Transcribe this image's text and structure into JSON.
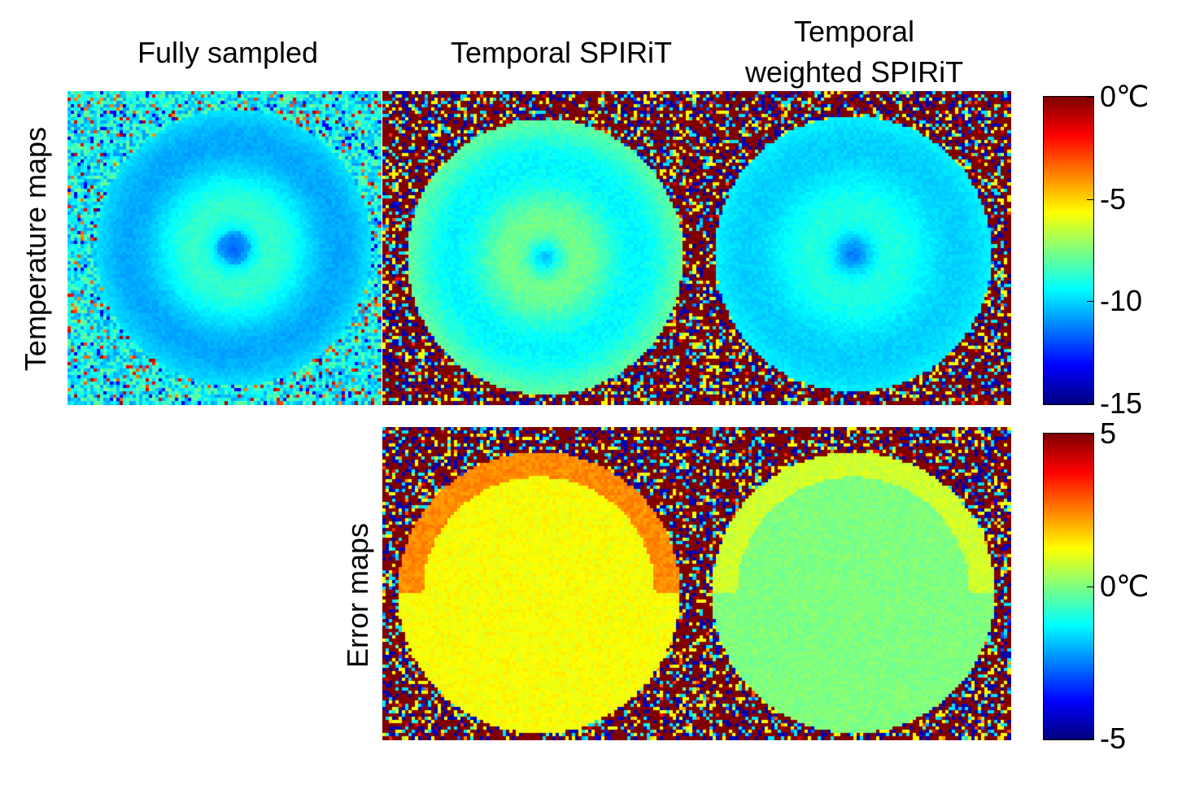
{
  "columns": {
    "fully_sampled": "Fully sampled",
    "temporal_spirit": "Temporal SPIRiT",
    "temporal_weighted_line1": "Temporal",
    "temporal_weighted_line2": "weighted SPIRiT"
  },
  "rows": {
    "temperature": "Temperature maps",
    "error": "Error maps"
  },
  "temperature_colorbar": {
    "min": -15,
    "max": 0,
    "ticks": [
      {
        "value": 0,
        "label": "0℃"
      },
      {
        "value": -5,
        "label": "-5"
      },
      {
        "value": -10,
        "label": "-10"
      },
      {
        "value": -15,
        "label": "-15"
      }
    ]
  },
  "error_colorbar": {
    "min": -5,
    "max": 5,
    "ticks": [
      {
        "value": 5,
        "label": "5"
      },
      {
        "value": 0,
        "label": "0℃"
      },
      {
        "value": -5,
        "label": "-5"
      }
    ]
  },
  "colormap": "jet"
}
